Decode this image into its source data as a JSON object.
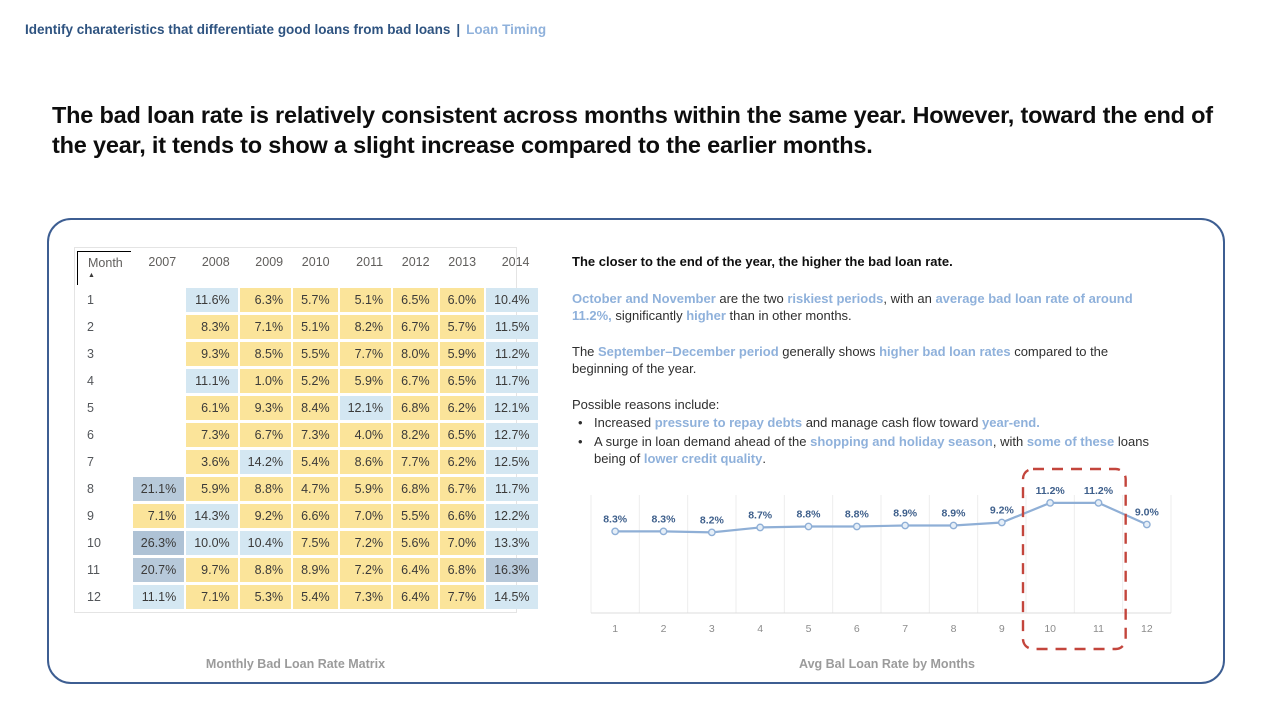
{
  "breadcrumb": {
    "title": "Identify charateristics that differentiate good loans from bad loans",
    "separator": "|",
    "section": "Loan Timing"
  },
  "headline": "The bad loan rate is relatively consistent across months within the same year. However, toward the end of the year, it tends to show a slight increase compared to the earlier months.",
  "colors": {
    "navy": "#2E5380",
    "highlight_blue": "#8FB1DB",
    "cell_yellow": "#FBE49A",
    "cell_blue": "#D4E7F2",
    "cell_gray": "#B7C9DA",
    "cell_gray_dark": "#AEC2D5",
    "line_blue": "#8FAFD6",
    "label_blue": "#3F608C",
    "highlight_red": "#C3453C"
  },
  "insight": {
    "heading": "The closer to the end of the year, the higher the bad loan rate.",
    "para1": [
      {
        "t": "October and November",
        "hl": true
      },
      {
        "t": " are the two ",
        "hl": false
      },
      {
        "t": "riskiest periods",
        "hl": true
      },
      {
        "t": ", with an ",
        "hl": false
      },
      {
        "t": "average bad loan rate of around 11.2%,",
        "hl": true
      },
      {
        "t": " significantly ",
        "hl": false
      },
      {
        "t": "higher",
        "hl": true
      },
      {
        "t": " than in other months.",
        "hl": false
      }
    ],
    "para2": [
      {
        "t": "The ",
        "hl": false
      },
      {
        "t": "September–December period",
        "hl": true
      },
      {
        "t": " generally shows ",
        "hl": false
      },
      {
        "t": "higher bad loan rates",
        "hl": true
      },
      {
        "t": " compared to the beginning of the year.",
        "hl": false
      }
    ],
    "reasons_label": "Possible reasons include:",
    "bullets": [
      [
        {
          "t": "Increased ",
          "hl": false
        },
        {
          "t": "pressure to repay debts",
          "hl": true
        },
        {
          "t": " and manage cash flow toward ",
          "hl": false
        },
        {
          "t": "year-end.",
          "hl": true
        }
      ],
      [
        {
          "t": "A surge in loan demand ahead of the ",
          "hl": false
        },
        {
          "t": "shopping and holiday season",
          "hl": true
        },
        {
          "t": ", with ",
          "hl": false
        },
        {
          "t": "some of these",
          "hl": true
        },
        {
          "t": " loans being of ",
          "hl": false
        },
        {
          "t": "lower credit quality",
          "hl": true
        },
        {
          "t": ".",
          "hl": false
        }
      ]
    ]
  },
  "chart_data": [
    {
      "type": "table",
      "title": "Monthly Bad Loan Rate Matrix",
      "sorted_by": "Month ascending",
      "columns": [
        "Month",
        "2007",
        "2008",
        "2009",
        "2010",
        "2011",
        "2012",
        "2013",
        "2014"
      ],
      "palette": {
        "yellow": "#FBE49A",
        "blue": "#D4E7F2",
        "gray": "#B7C9DA",
        "gray2": "#AEC2D5"
      },
      "rows": [
        {
          "month": "1",
          "cells": [
            [
              "",
              ""
            ],
            [
              "11.6%",
              "blue"
            ],
            [
              "6.3%",
              "yellow"
            ],
            [
              "5.7%",
              "yellow"
            ],
            [
              "5.1%",
              "yellow"
            ],
            [
              "6.5%",
              "yellow"
            ],
            [
              "6.0%",
              "yellow"
            ],
            [
              "10.4%",
              "blue"
            ]
          ]
        },
        {
          "month": "2",
          "cells": [
            [
              "",
              ""
            ],
            [
              "8.3%",
              "yellow"
            ],
            [
              "7.1%",
              "yellow"
            ],
            [
              "5.1%",
              "yellow"
            ],
            [
              "8.2%",
              "yellow"
            ],
            [
              "6.7%",
              "yellow"
            ],
            [
              "5.7%",
              "yellow"
            ],
            [
              "11.5%",
              "blue"
            ]
          ]
        },
        {
          "month": "3",
          "cells": [
            [
              "",
              ""
            ],
            [
              "9.3%",
              "yellow"
            ],
            [
              "8.5%",
              "yellow"
            ],
            [
              "5.5%",
              "yellow"
            ],
            [
              "7.7%",
              "yellow"
            ],
            [
              "8.0%",
              "yellow"
            ],
            [
              "5.9%",
              "yellow"
            ],
            [
              "11.2%",
              "blue"
            ]
          ]
        },
        {
          "month": "4",
          "cells": [
            [
              "",
              ""
            ],
            [
              "11.1%",
              "blue"
            ],
            [
              "1.0%",
              "yellow"
            ],
            [
              "5.2%",
              "yellow"
            ],
            [
              "5.9%",
              "yellow"
            ],
            [
              "6.7%",
              "yellow"
            ],
            [
              "6.5%",
              "yellow"
            ],
            [
              "11.7%",
              "blue"
            ]
          ]
        },
        {
          "month": "5",
          "cells": [
            [
              "",
              ""
            ],
            [
              "6.1%",
              "yellow"
            ],
            [
              "9.3%",
              "yellow"
            ],
            [
              "8.4%",
              "yellow"
            ],
            [
              "12.1%",
              "blue"
            ],
            [
              "6.8%",
              "yellow"
            ],
            [
              "6.2%",
              "yellow"
            ],
            [
              "12.1%",
              "blue"
            ]
          ]
        },
        {
          "month": "6",
          "cells": [
            [
              "",
              ""
            ],
            [
              "7.3%",
              "yellow"
            ],
            [
              "6.7%",
              "yellow"
            ],
            [
              "7.3%",
              "yellow"
            ],
            [
              "4.0%",
              "yellow"
            ],
            [
              "8.2%",
              "yellow"
            ],
            [
              "6.5%",
              "yellow"
            ],
            [
              "12.7%",
              "blue"
            ]
          ]
        },
        {
          "month": "7",
          "cells": [
            [
              "",
              ""
            ],
            [
              "3.6%",
              "yellow"
            ],
            [
              "14.2%",
              "blue"
            ],
            [
              "5.4%",
              "yellow"
            ],
            [
              "8.6%",
              "yellow"
            ],
            [
              "7.7%",
              "yellow"
            ],
            [
              "6.2%",
              "yellow"
            ],
            [
              "12.5%",
              "blue"
            ]
          ]
        },
        {
          "month": "8",
          "cells": [
            [
              "21.1%",
              "gray"
            ],
            [
              "5.9%",
              "yellow"
            ],
            [
              "8.8%",
              "yellow"
            ],
            [
              "4.7%",
              "yellow"
            ],
            [
              "5.9%",
              "yellow"
            ],
            [
              "6.8%",
              "yellow"
            ],
            [
              "6.7%",
              "yellow"
            ],
            [
              "11.7%",
              "blue"
            ]
          ]
        },
        {
          "month": "9",
          "cells": [
            [
              "7.1%",
              "yellow"
            ],
            [
              "14.3%",
              "blue"
            ],
            [
              "9.2%",
              "yellow"
            ],
            [
              "6.6%",
              "yellow"
            ],
            [
              "7.0%",
              "yellow"
            ],
            [
              "5.5%",
              "yellow"
            ],
            [
              "6.6%",
              "yellow"
            ],
            [
              "12.2%",
              "blue"
            ]
          ]
        },
        {
          "month": "10",
          "cells": [
            [
              "26.3%",
              "gray2"
            ],
            [
              "10.0%",
              "blue"
            ],
            [
              "10.4%",
              "blue"
            ],
            [
              "7.5%",
              "yellow"
            ],
            [
              "7.2%",
              "yellow"
            ],
            [
              "5.6%",
              "yellow"
            ],
            [
              "7.0%",
              "yellow"
            ],
            [
              "13.3%",
              "blue"
            ]
          ]
        },
        {
          "month": "11",
          "cells": [
            [
              "20.7%",
              "gray"
            ],
            [
              "9.7%",
              "yellow"
            ],
            [
              "8.8%",
              "yellow"
            ],
            [
              "8.9%",
              "yellow"
            ],
            [
              "7.2%",
              "yellow"
            ],
            [
              "6.4%",
              "yellow"
            ],
            [
              "6.8%",
              "yellow"
            ],
            [
              "16.3%",
              "gray"
            ]
          ]
        },
        {
          "month": "12",
          "cells": [
            [
              "11.1%",
              "blue"
            ],
            [
              "7.1%",
              "yellow"
            ],
            [
              "5.3%",
              "yellow"
            ],
            [
              "5.4%",
              "yellow"
            ],
            [
              "7.3%",
              "yellow"
            ],
            [
              "6.4%",
              "yellow"
            ],
            [
              "7.7%",
              "yellow"
            ],
            [
              "14.5%",
              "blue"
            ]
          ]
        }
      ]
    },
    {
      "type": "line",
      "title": "Avg Bal Loan Rate by Months",
      "x": [
        1,
        2,
        3,
        4,
        5,
        6,
        7,
        8,
        9,
        10,
        11,
        12
      ],
      "values": [
        8.3,
        8.3,
        8.2,
        8.7,
        8.8,
        8.8,
        8.9,
        8.9,
        9.2,
        11.2,
        11.2,
        9.0
      ],
      "labels": [
        "8.3%",
        "8.3%",
        "8.2%",
        "8.7%",
        "8.8%",
        "8.8%",
        "8.9%",
        "8.9%",
        "9.2%",
        "11.2%",
        "11.2%",
        "9.0%"
      ],
      "ylim": [
        0,
        12
      ],
      "grid": "vertical",
      "legend": "none",
      "highlight_months": [
        10,
        11
      ]
    }
  ]
}
